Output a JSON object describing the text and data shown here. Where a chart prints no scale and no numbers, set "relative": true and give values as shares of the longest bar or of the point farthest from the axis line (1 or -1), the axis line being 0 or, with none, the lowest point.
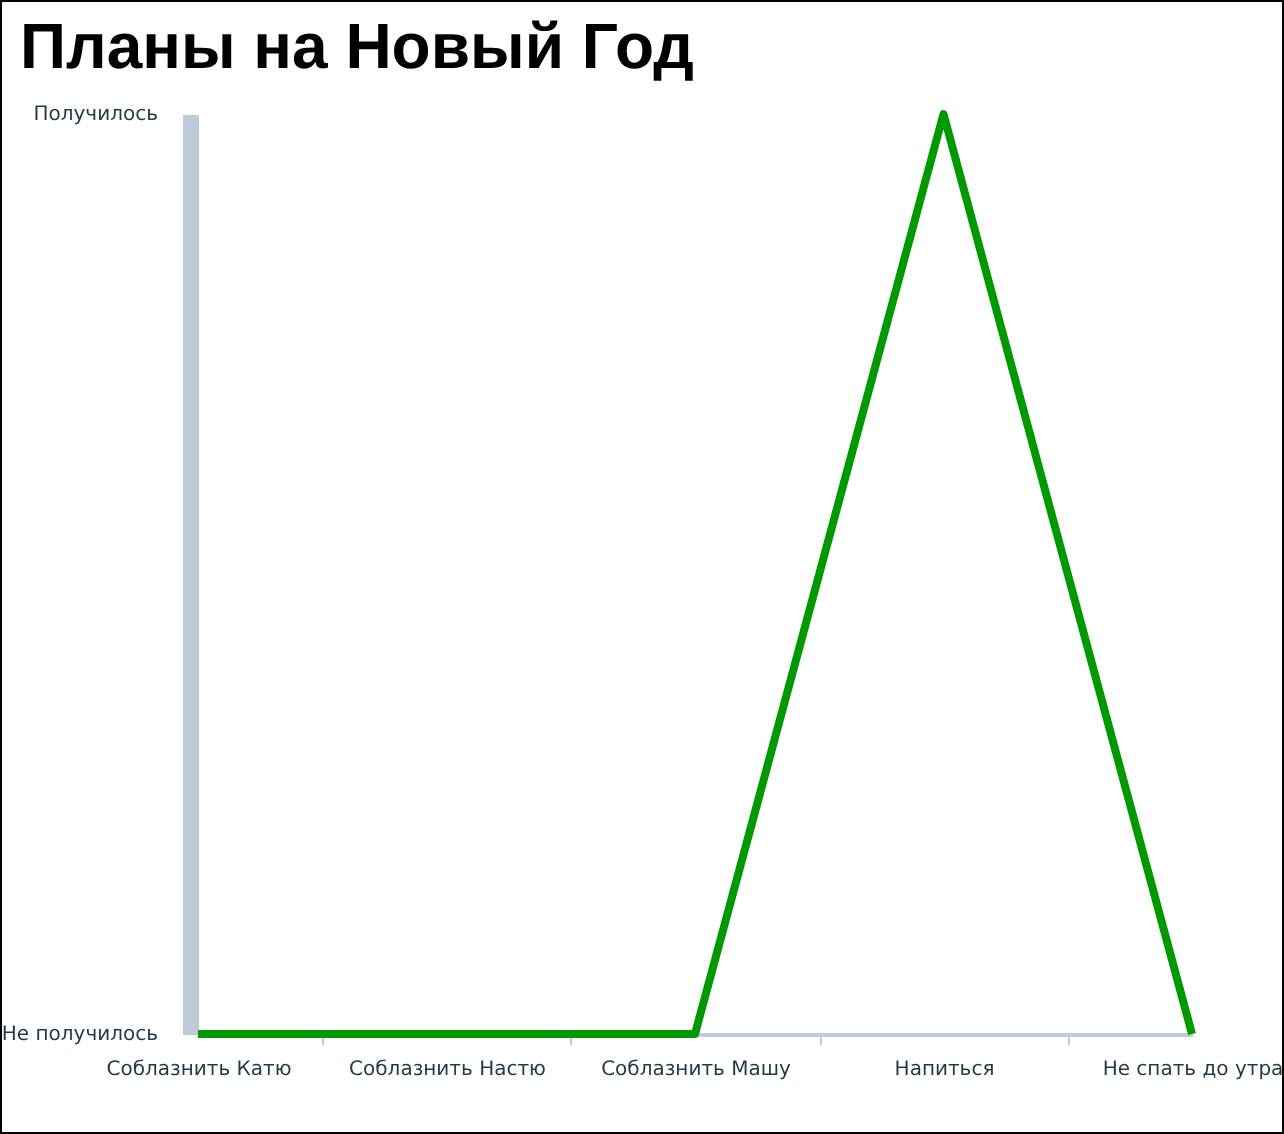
{
  "chart_data": {
    "type": "line",
    "title": "Планы на Новый Год",
    "categories": [
      "Соблазнить Катю",
      "Соблазнить Настю",
      "Соблазнить Машу",
      "Напиться",
      "Не спать до утра"
    ],
    "values": [
      0,
      0,
      0,
      1,
      0
    ],
    "color": "#009900",
    "relative": true,
    "annotations": [
      "Получилось",
      "Не получилось"
    ]
  }
}
